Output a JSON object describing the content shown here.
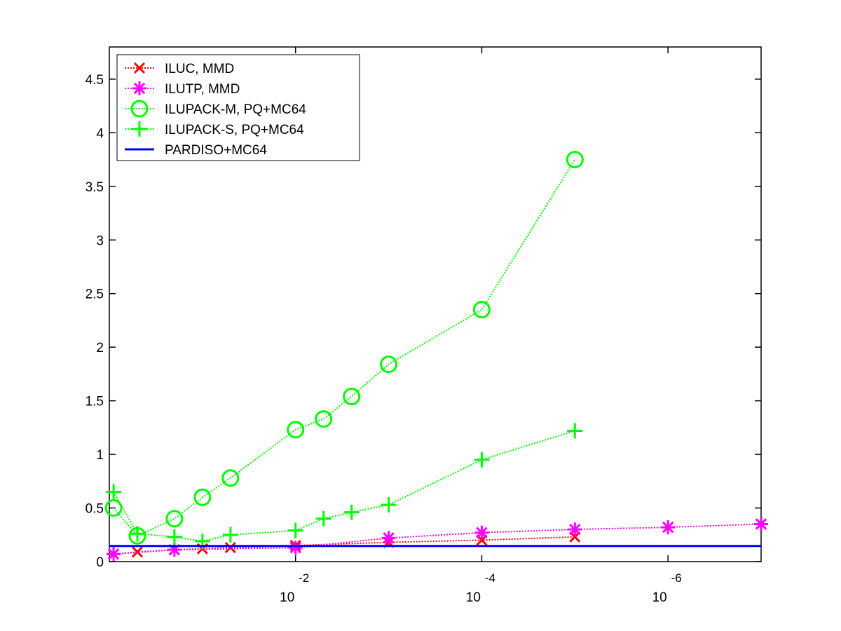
{
  "chart_data": {
    "type": "line",
    "x_scale": "log",
    "x_reversed": true,
    "xlim": [
      1,
      1e-07
    ],
    "ylim": [
      0,
      4.8
    ],
    "x_tick_labels": [
      {
        "value": 0.01,
        "base": "10",
        "exponent": "-2"
      },
      {
        "value": 0.0001,
        "base": "10",
        "exponent": "-4"
      },
      {
        "value": 1e-06,
        "base": "10",
        "exponent": "-6"
      }
    ],
    "y_ticks": [
      0,
      0.5,
      1,
      1.5,
      2,
      2.5,
      3,
      3.5,
      4,
      4.5
    ],
    "y_tick_labels": [
      "0",
      "0.5",
      "1",
      "1.5",
      "2",
      "2.5",
      "3",
      "3.5",
      "4",
      "4.5"
    ],
    "legend_position": "top-left",
    "series": [
      {
        "name": "ILUC, MMD",
        "color": "#ff0000",
        "marker": "x",
        "line": "dotted",
        "x": [
          0.9,
          0.5,
          0.2,
          0.1,
          0.05,
          0.01,
          0.001,
          0.0001,
          1e-05
        ],
        "y": [
          0.07,
          0.09,
          0.11,
          0.12,
          0.13,
          0.15,
          0.18,
          0.2,
          0.23
        ]
      },
      {
        "name": "ILUTP, MMD",
        "color": "#ff00ff",
        "marker": "asterisk",
        "line": "dotted",
        "x": [
          0.9,
          0.2,
          0.01,
          0.001,
          0.0001,
          1e-05,
          1e-06,
          1e-07
        ],
        "y": [
          0.07,
          0.11,
          0.13,
          0.22,
          0.27,
          0.3,
          0.32,
          0.35
        ]
      },
      {
        "name": "ILUPACK-M, PQ+MC64",
        "color": "#00ff00",
        "marker": "circle",
        "line": "dotted",
        "x": [
          0.9,
          0.5,
          0.2,
          0.1,
          0.05,
          0.01,
          0.005,
          0.0025,
          0.001,
          0.0001,
          1e-05
        ],
        "y": [
          0.5,
          0.24,
          0.4,
          0.6,
          0.78,
          1.23,
          1.33,
          1.54,
          1.84,
          2.35,
          3.75
        ]
      },
      {
        "name": "ILUPACK-S, PQ+MC64",
        "color": "#00ff00",
        "marker": "plus",
        "line": "dotted",
        "x": [
          0.9,
          0.5,
          0.2,
          0.1,
          0.05,
          0.01,
          0.005,
          0.0025,
          0.001,
          0.0001,
          1e-05
        ],
        "y": [
          0.65,
          0.26,
          0.23,
          0.19,
          0.25,
          0.29,
          0.4,
          0.46,
          0.53,
          0.95,
          1.22
        ]
      },
      {
        "name": "PARDISO+MC64",
        "color": "#0000ff",
        "marker": "none",
        "line": "solid",
        "x": [
          1,
          1e-07
        ],
        "y": [
          0.145,
          0.145
        ]
      }
    ]
  }
}
